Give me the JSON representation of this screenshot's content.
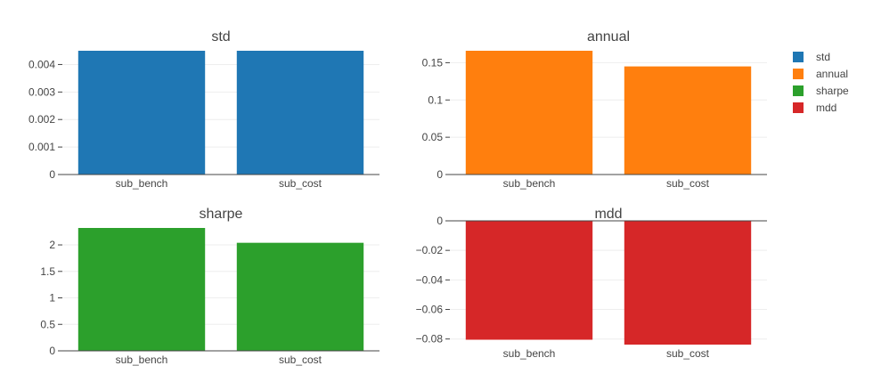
{
  "chart_data": [
    {
      "type": "bar",
      "title": "std",
      "categories": [
        "sub_bench",
        "sub_cost"
      ],
      "values": [
        0.0045,
        0.0045
      ],
      "color": "#1f77b4",
      "ylim": [
        0,
        0.0045
      ],
      "ticks": [
        0,
        0.001,
        0.002,
        0.003,
        0.004
      ],
      "tick_labels": [
        "0",
        "0.001",
        "0.002",
        "0.003",
        "0.004"
      ],
      "xlabel": "",
      "ylabel": ""
    },
    {
      "type": "bar",
      "title": "annual",
      "categories": [
        "sub_bench",
        "sub_cost"
      ],
      "values": [
        0.166,
        0.145
      ],
      "color": "#ff7f0e",
      "ylim": [
        0,
        0.166
      ],
      "ticks": [
        0,
        0.05,
        0.1,
        0.15
      ],
      "tick_labels": [
        "0",
        "0.05",
        "0.1",
        "0.15"
      ],
      "xlabel": "",
      "ylabel": ""
    },
    {
      "type": "bar",
      "title": "sharpe",
      "categories": [
        "sub_bench",
        "sub_cost"
      ],
      "values": [
        2.32,
        2.04
      ],
      "color": "#2ca02c",
      "ylim": [
        0,
        2.32
      ],
      "ticks": [
        0,
        0.5,
        1,
        1.5,
        2
      ],
      "tick_labels": [
        "0",
        "0.5",
        "1",
        "1.5",
        "2"
      ],
      "xlabel": "",
      "ylabel": ""
    },
    {
      "type": "bar",
      "title": "mdd",
      "categories": [
        "sub_bench",
        "sub_cost"
      ],
      "values": [
        -0.0805,
        -0.0838
      ],
      "color": "#d62728",
      "ylim": [
        -0.0838,
        0
      ],
      "ticks": [
        0,
        -0.02,
        -0.04,
        -0.06,
        -0.08
      ],
      "tick_labels": [
        "0",
        "−0.02",
        "−0.04",
        "−0.06",
        "−0.08"
      ],
      "xlabel": "",
      "ylabel": ""
    }
  ],
  "legend": {
    "items": [
      {
        "label": "std",
        "color": "#1f77b4"
      },
      {
        "label": "annual",
        "color": "#ff7f0e"
      },
      {
        "label": "sharpe",
        "color": "#2ca02c"
      },
      {
        "label": "mdd",
        "color": "#d62728"
      }
    ]
  },
  "style": {
    "axis_line_color": "#444444",
    "grid_color": "#eeeeee",
    "text_color": "#444444",
    "title_color": "#444444"
  }
}
